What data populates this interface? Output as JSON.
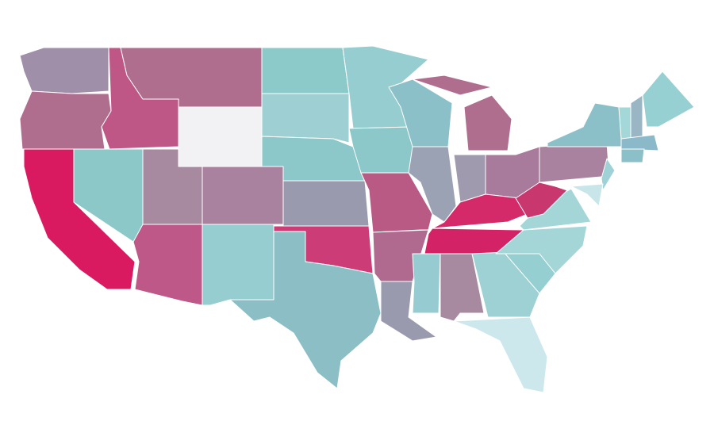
{
  "map": {
    "regions": [
      {
        "color": "#a08fa8"
      },
      {
        "color": "#b06e8f"
      },
      {
        "color": "#d91a60"
      },
      {
        "color": "#8dc8c8"
      },
      {
        "color": "#be5686"
      },
      {
        "color": "#b06e8f"
      },
      {
        "color": "#f2f2f4"
      },
      {
        "color": "#a88aa0"
      },
      {
        "color": "#a8829e"
      },
      {
        "color": "#bd5888"
      },
      {
        "color": "#96cdd0"
      },
      {
        "color": "#8ccac9"
      },
      {
        "color": "#9ecfd2"
      },
      {
        "color": "#8cc8c9"
      },
      {
        "color": "#9a9aae"
      },
      {
        "color": "#cc3d78"
      },
      {
        "color": "#8bbec5"
      },
      {
        "color": "#96cdd0"
      },
      {
        "color": "#8cc8c9"
      },
      {
        "color": "#b95a85"
      },
      {
        "color": "#b06a8f"
      },
      {
        "color": "#9a9aae"
      },
      {
        "color": "#8cc0c9"
      },
      {
        "color": "#b06e8f"
      },
      {
        "color": "#b06e8f"
      },
      {
        "color": "#9aa2b4"
      },
      {
        "color": "#a09aae"
      },
      {
        "color": "#a87a9c"
      },
      {
        "color": "#d42a6a"
      },
      {
        "color": "#d42266"
      },
      {
        "color": "#96ccd1"
      },
      {
        "color": "#a88aa0"
      },
      {
        "color": "#9ed1d4"
      },
      {
        "color": "#cce8ec"
      },
      {
        "color": "#96cfd1"
      },
      {
        "color": "#a4d6d8"
      },
      {
        "color": "#a4d6d8"
      },
      {
        "color": "#c8386f"
      },
      {
        "color": "#a8829e"
      },
      {
        "color": "#8cc0c9"
      },
      {
        "color": "#9ed2d6"
      },
      {
        "color": "#c8e6ea"
      },
      {
        "color": "#a4d8d8"
      },
      {
        "color": "#9ab5c4"
      },
      {
        "color": "#96d0d3"
      },
      {
        "color": "#8cb9c9"
      },
      {
        "color": "#8cc0c9"
      }
    ]
  }
}
